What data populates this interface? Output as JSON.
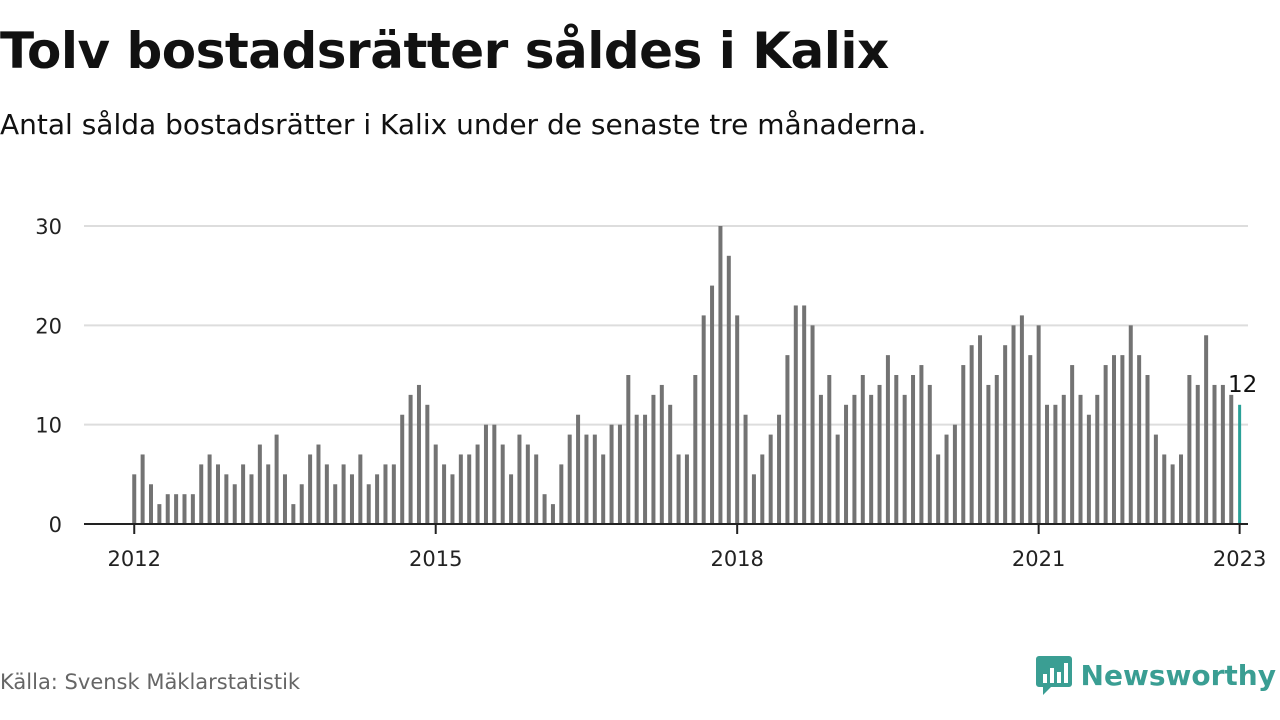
{
  "title": "Tolv bostadsrätter såldes i Kalix",
  "subtitle": "Antal sålda bostadsrätter i Kalix under de senaste tre månaderna.",
  "source": "Källa: Svensk Mäklarstatistik",
  "brand": {
    "name": "Newsworthy",
    "icon": "newsworthy-logo-icon",
    "color": "#3a9e93"
  },
  "colors": {
    "bar": "#737373",
    "highlight": "#2aa198",
    "grid": "#dddddd",
    "axis": "#222222"
  },
  "chart_data": {
    "type": "bar",
    "title": "Tolv bostadsrätter såldes i Kalix",
    "xlabel": "",
    "ylabel": "",
    "ylim": [
      0,
      30
    ],
    "yticks": [
      0,
      10,
      20,
      30
    ],
    "grid": true,
    "xlim_months": [
      -6,
      133
    ],
    "xticks": [
      {
        "label": "2012",
        "month": 0
      },
      {
        "label": "2015",
        "month": 36
      },
      {
        "label": "2018",
        "month": 72
      },
      {
        "label": "2021",
        "month": 108
      },
      {
        "label": "2023",
        "month": 132
      }
    ],
    "start_month": "2012-01",
    "values": [
      5,
      7,
      4,
      2,
      3,
      3,
      3,
      3,
      6,
      7,
      6,
      5,
      4,
      6,
      5,
      8,
      6,
      9,
      5,
      2,
      4,
      7,
      8,
      6,
      4,
      6,
      5,
      7,
      4,
      5,
      6,
      6,
      11,
      13,
      14,
      12,
      8,
      6,
      5,
      7,
      7,
      8,
      10,
      10,
      8,
      5,
      9,
      8,
      7,
      3,
      2,
      6,
      9,
      11,
      9,
      9,
      7,
      10,
      10,
      15,
      11,
      11,
      13,
      14,
      12,
      7,
      7,
      15,
      21,
      24,
      30,
      27,
      21,
      11,
      5,
      7,
      9,
      11,
      17,
      22,
      22,
      20,
      13,
      15,
      9,
      12,
      13,
      15,
      13,
      14,
      17,
      15,
      13,
      15,
      16,
      14,
      7,
      9,
      10,
      16,
      18,
      19,
      14,
      15,
      18,
      20,
      21,
      17,
      20,
      12,
      12,
      13,
      16,
      13,
      11,
      13,
      16,
      17,
      17,
      20,
      17,
      15,
      9,
      7,
      6,
      7,
      15,
      14,
      19,
      14,
      14,
      13,
      12
    ],
    "highlight": {
      "index": 132,
      "value": 12,
      "label": "12"
    }
  }
}
